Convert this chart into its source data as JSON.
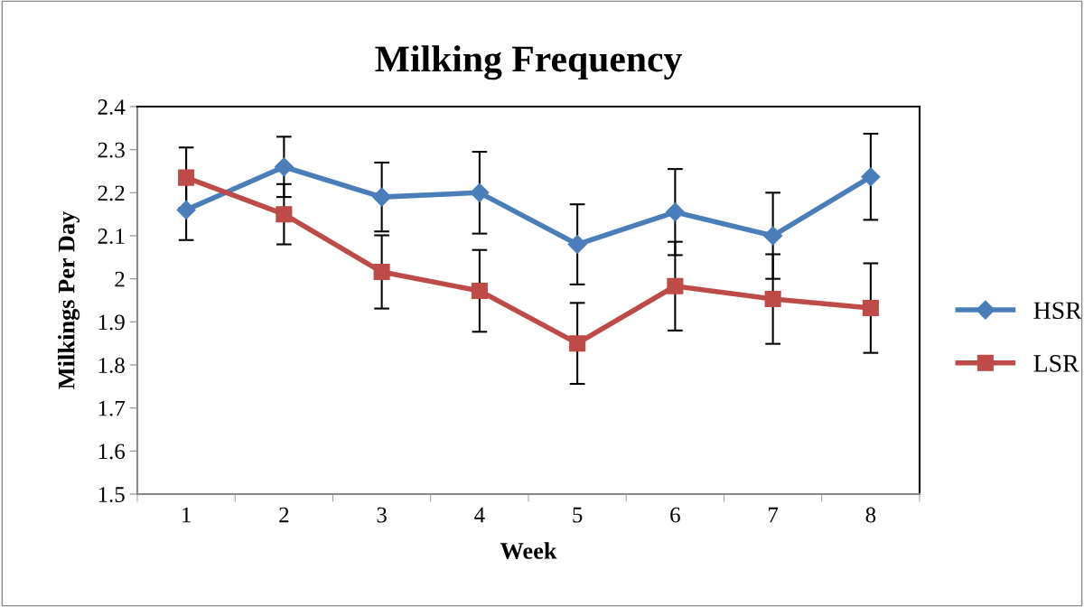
{
  "chart_data": {
    "type": "line",
    "title": "Milking Frequency",
    "xlabel": "Week",
    "ylabel": "Milkings Per Day",
    "categories": [
      "1",
      "2",
      "3",
      "4",
      "5",
      "6",
      "7",
      "8"
    ],
    "series": [
      {
        "name": "HSR",
        "color": "#4a7ebb",
        "marker": "diamond",
        "values": [
          2.16,
          2.26,
          2.19,
          2.2,
          2.08,
          2.155,
          2.1,
          2.237
        ],
        "errors": [
          0.07,
          0.07,
          0.08,
          0.095,
          0.093,
          0.1,
          0.1,
          0.1
        ]
      },
      {
        "name": "LSR",
        "color": "#be4b48",
        "marker": "square",
        "values": [
          2.235,
          2.15,
          2.016,
          1.972,
          1.85,
          1.983,
          1.953,
          1.932
        ],
        "errors": [
          0.07,
          0.07,
          0.085,
          0.095,
          0.094,
          0.103,
          0.104,
          0.104
        ]
      }
    ],
    "ylim": [
      1.5,
      2.4
    ],
    "yticks": [
      1.5,
      1.6,
      1.7,
      1.8,
      1.9,
      2,
      2.1,
      2.2,
      2.3,
      2.4
    ],
    "grid": false,
    "legend": "right",
    "line_style": "solid"
  }
}
